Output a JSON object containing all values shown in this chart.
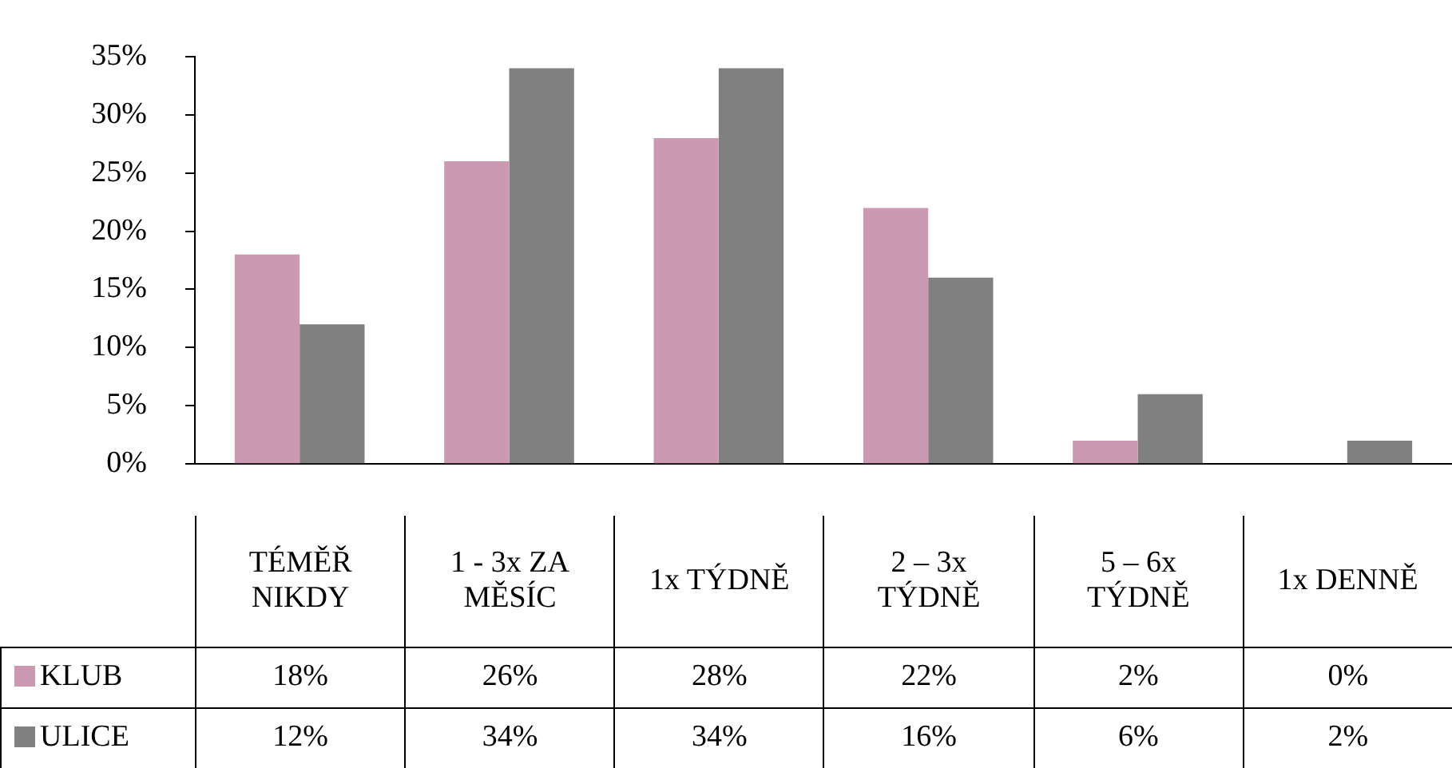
{
  "chart_data": {
    "type": "bar",
    "categories": [
      "TÉMĚŘ NIKDY",
      "1 - 3x ZA MĚSÍC",
      "1x TÝDNĚ",
      "2 – 3x TÝDNĚ",
      "5 – 6x TÝDNĚ",
      "1x DENNĚ"
    ],
    "series": [
      {
        "name": "KLUB",
        "color": "#cc99b3",
        "values": [
          18,
          26,
          28,
          22,
          2,
          0
        ],
        "value_labels": [
          "18%",
          "26%",
          "28%",
          "22%",
          "2%",
          "0%"
        ]
      },
      {
        "name": "ULICE",
        "color": "#808080",
        "values": [
          12,
          34,
          34,
          16,
          6,
          2
        ],
        "value_labels": [
          "12%",
          "34%",
          "34%",
          "16%",
          "6%",
          "2%"
        ]
      }
    ],
    "ylim": [
      0,
      35
    ],
    "yticks": [
      {
        "value": 0,
        "label": "0%"
      },
      {
        "value": 5,
        "label": "5%"
      },
      {
        "value": 10,
        "label": "10%"
      },
      {
        "value": 15,
        "label": "15%"
      },
      {
        "value": 20,
        "label": "20%"
      },
      {
        "value": 25,
        "label": "25%"
      },
      {
        "value": 30,
        "label": "30%"
      },
      {
        "value": 35,
        "label": "35%"
      }
    ],
    "grid": false,
    "legend": "bottom left"
  }
}
